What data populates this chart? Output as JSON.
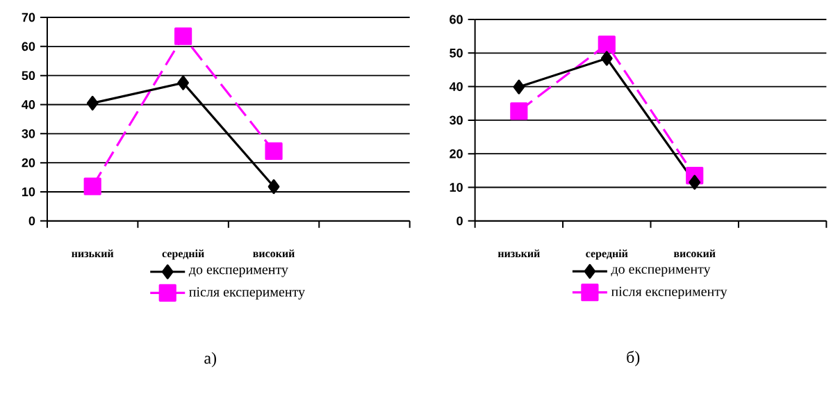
{
  "chart_data": [
    {
      "type": "line",
      "categories": [
        "низький",
        "середній",
        "високий",
        null
      ],
      "series": [
        {
          "name": "до експерименту",
          "color": "#000000",
          "marker": "diamond",
          "line_style": "solid",
          "values": [
            40.5,
            47.5,
            11.8,
            null
          ]
        },
        {
          "name": "після експерименту",
          "color": "#ff00ff",
          "marker": "square",
          "line_style": "dashed",
          "values": [
            11.9,
            63.5,
            24,
            null
          ]
        }
      ],
      "ylim": [
        0,
        70
      ],
      "yticks": [
        0,
        10,
        20,
        30,
        40,
        50,
        60,
        70
      ],
      "grid": "y",
      "legend": "bottom",
      "annotations": [
        "а)"
      ]
    },
    {
      "type": "line",
      "categories": [
        "низький",
        "середній",
        "високий",
        null
      ],
      "series": [
        {
          "name": "до експерименту",
          "color": "#000000",
          "marker": "diamond",
          "line_style": "solid",
          "values": [
            39.9,
            48.4,
            11.5,
            null
          ]
        },
        {
          "name": "після експерименту",
          "color": "#ff00ff",
          "marker": "square",
          "line_style": "dashed",
          "values": [
            32.7,
            52.6,
            13.5,
            null
          ]
        }
      ],
      "ylim": [
        0,
        60
      ],
      "yticks": [
        0,
        10,
        20,
        30,
        40,
        50,
        60
      ],
      "grid": "y",
      "legend": "bottom",
      "annotations": [
        "б)"
      ]
    }
  ]
}
